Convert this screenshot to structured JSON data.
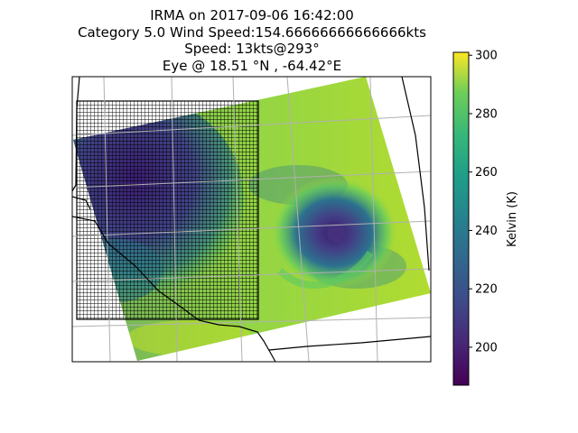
{
  "chart_data": {
    "type": "heatmap",
    "title_lines": [
      "IRMA on 2017-09-06 16:42:00",
      "Category 5.0 Wind Speed:154.66666666666666kts",
      "Speed: 13kts@293°",
      "Eye @ 18.51 °N , -64.42°E"
    ],
    "colorbar": {
      "label": "Kelvin (K)",
      "colormap": "viridis",
      "range": [
        187,
        301
      ],
      "ticks": [
        200,
        220,
        240,
        260,
        280,
        300
      ]
    },
    "eye": {
      "lat": 18.51,
      "lon": -64.42
    },
    "grid": true,
    "colors": {
      "low": "#440154",
      "high": "#fde725",
      "frame": "#000000",
      "gridline": "#b0b0b0"
    }
  }
}
